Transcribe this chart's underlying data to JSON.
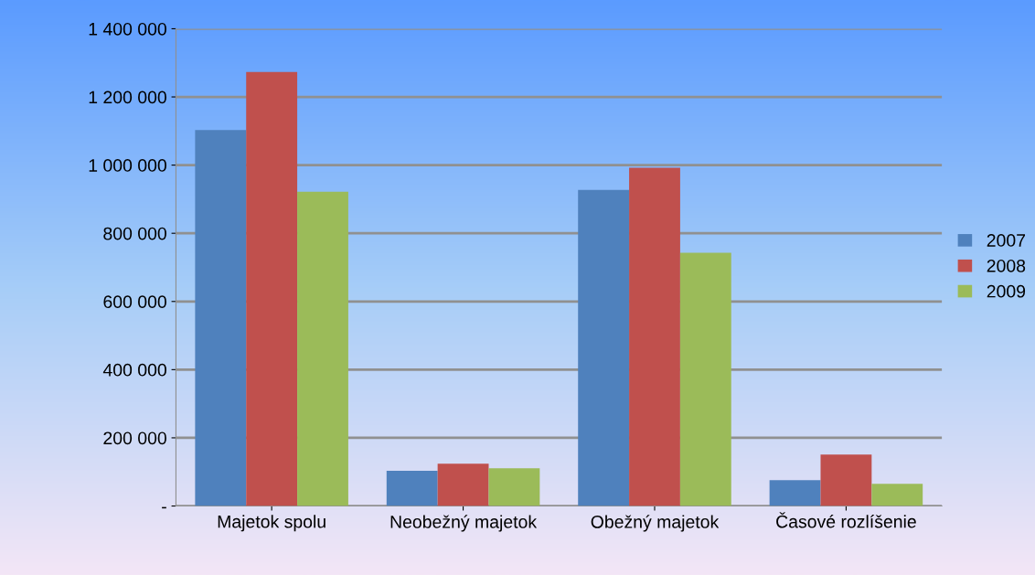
{
  "chart_data": {
    "type": "bar",
    "categories": [
      "Majetok spolu",
      "Neobežný majetok",
      "Obežný majetok",
      "Časové rozlíšenie"
    ],
    "series": [
      {
        "name": "2007",
        "color": "#4f81bd",
        "values": [
          1103000,
          103000,
          927000,
          76000
        ]
      },
      {
        "name": "2008",
        "color": "#c0504d",
        "values": [
          1273000,
          124000,
          992000,
          151000
        ]
      },
      {
        "name": "2009",
        "color": "#9bbb59",
        "values": [
          922000,
          111000,
          743000,
          65000
        ]
      }
    ],
    "ylim": [
      0,
      1400000
    ],
    "yticks": [
      {
        "value": 0,
        "label": "-"
      },
      {
        "value": 200000,
        "label": "200 000"
      },
      {
        "value": 400000,
        "label": "400 000"
      },
      {
        "value": 600000,
        "label": "600 000"
      },
      {
        "value": 800000,
        "label": "800 000"
      },
      {
        "value": 1000000,
        "label": "1 000 000"
      },
      {
        "value": 1200000,
        "label": "1 200 000"
      },
      {
        "value": 1400000,
        "label": "1 400 000"
      }
    ],
    "grid": "y",
    "legend": "right"
  }
}
